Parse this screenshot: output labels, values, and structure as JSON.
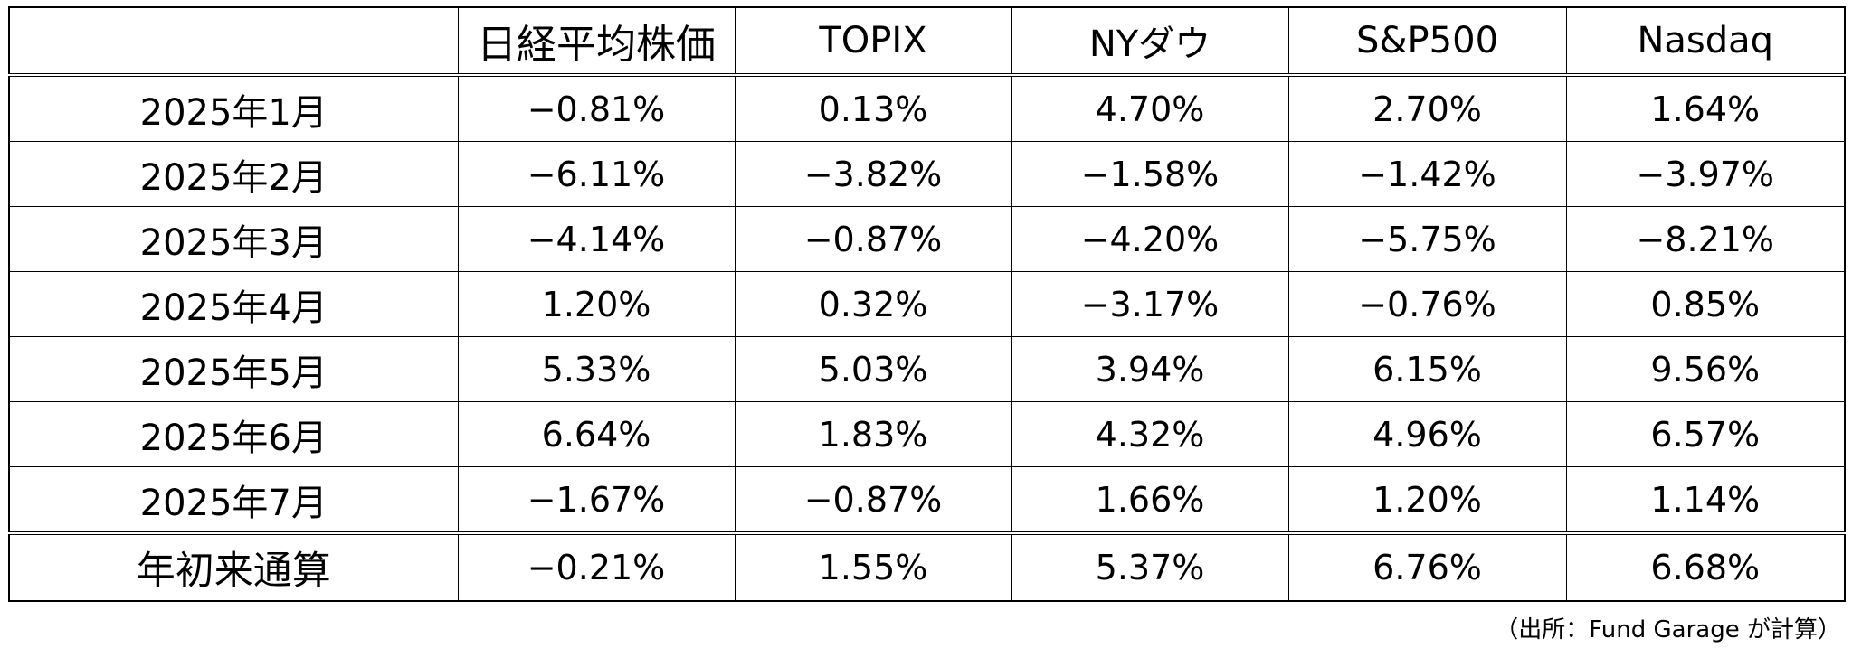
{
  "table": {
    "corner": "",
    "headers": [
      "日経平均株価",
      "TOPIX",
      "NYダウ",
      "S&P500",
      "Nasdaq"
    ],
    "rows": [
      {
        "label": "2025年1月",
        "values": [
          "−0.81%",
          "0.13%",
          "4.70%",
          "2.70%",
          "1.64%"
        ]
      },
      {
        "label": "2025年2月",
        "values": [
          "−6.11%",
          "−3.82%",
          "−1.58%",
          "−1.42%",
          "−3.97%"
        ]
      },
      {
        "label": "2025年3月",
        "values": [
          "−4.14%",
          "−0.87%",
          "−4.20%",
          "−5.75%",
          "−8.21%"
        ]
      },
      {
        "label": "2025年4月",
        "values": [
          "1.20%",
          "0.32%",
          "−3.17%",
          "−0.76%",
          "0.85%"
        ]
      },
      {
        "label": "2025年5月",
        "values": [
          "5.33%",
          "5.03%",
          "3.94%",
          "6.15%",
          "9.56%"
        ]
      },
      {
        "label": "2025年6月",
        "values": [
          "6.64%",
          "1.83%",
          "4.32%",
          "4.96%",
          "6.57%"
        ]
      },
      {
        "label": "2025年7月",
        "values": [
          "−1.67%",
          "−0.87%",
          "1.66%",
          "1.20%",
          "1.14%"
        ]
      }
    ],
    "total": {
      "label": "年初来通算",
      "values": [
        "−0.21%",
        "1.55%",
        "5.37%",
        "6.76%",
        "6.68%"
      ]
    }
  },
  "source_note": "（出所：Fund Garage が計算）"
}
